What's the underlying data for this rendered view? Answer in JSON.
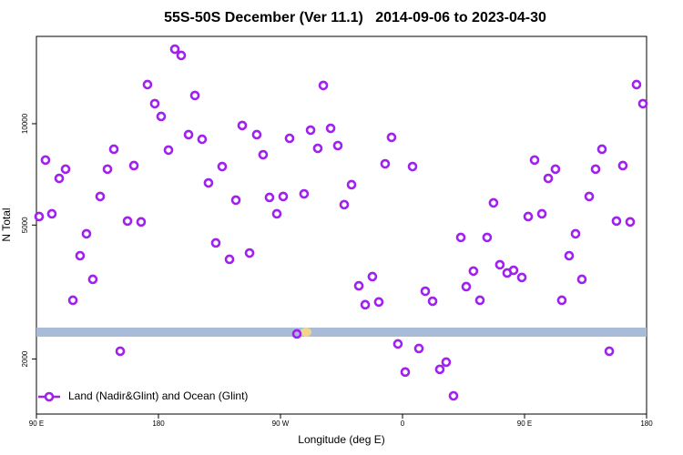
{
  "chart_data": {
    "type": "scatter",
    "title": "55S-50S December (Ver 11.1)   2014-09-06 to 2023-04-30",
    "x_label": "Longitude (deg E)",
    "y_label": "N Total",
    "x": [
      92,
      96.7,
      101.4,
      106.8,
      111.5,
      116.9,
      122.2,
      126.9,
      131.6,
      137,
      142.4,
      147.1,
      151.8,
      157.2,
      161.9,
      167.2,
      171.9,
      177.3,
      182,
      187.4,
      192.1,
      196.8,
      202.2,
      206.9,
      212.2,
      216.9,
      222.3,
      227,
      232.4,
      237.1,
      241.8,
      247.2,
      252.5,
      257.2,
      261.9,
      267.3,
      272,
      276.7,
      282.1,
      287.4,
      292.2,
      297.5,
      301.6,
      307,
      312.3,
      317,
      322.4,
      327.8,
      332.5,
      337.8,
      342.5,
      347.2,
      351.9,
      356.6,
      362,
      367.4,
      372.1,
      376.8,
      382.2,
      387.5,
      392.2,
      397.6,
      403,
      407,
      412.3,
      417.1,
      422.4,
      427.1,
      431.8,
      437.2,
      441.9,
      448,
      452.7,
      457.4,
      462.8,
      467.5,
      472.8,
      477.5,
      482.9,
      487.6,
      492.3,
      497.7,
      502.4,
      507.1,
      512.5,
      517.8,
      522.5,
      527.9,
      532.6,
      537.3
    ],
    "series": [
      {
        "name": "Land (Nadir&Glint) and Ocean (Glint)",
        "color": "#a020f0",
        "values": [
          5300,
          7800,
          5400,
          6880,
          7330,
          2990,
          4055,
          4710,
          3450,
          6080,
          7330,
          8400,
          2110,
          5140,
          7510,
          5110,
          13070,
          11470,
          10510,
          8350,
          16650,
          15950,
          9280,
          12130,
          8990,
          6670,
          4425,
          7460,
          3956,
          5930,
          9880,
          4130,
          9280,
          8090,
          6040,
          5400,
          6080,
          9050,
          2375,
          6190,
          9570,
          8450,
          12990,
          9690,
          8610,
          5750,
          6590,
          3300,
          2900,
          3515,
          2955,
          7600,
          9110,
          2218,
          1830,
          7460,
          2150,
          3180,
          2970,
          1864,
          1958,
          1555,
          4595,
          3282,
          3650,
          2990,
          4595,
          5820,
          3812,
          3603,
          3670,
          3494,
          5300,
          7800,
          5400,
          6880,
          7330,
          2990,
          4055,
          4710,
          3450,
          6080,
          7330,
          8400,
          2110,
          5140,
          7510,
          5110,
          13070,
          11470
        ]
      }
    ],
    "xlim": [
      90,
      540
    ],
    "xticks": [
      {
        "value": 90,
        "label": "90 E"
      },
      180,
      {
        "value": 270,
        "label": "90 W"
      },
      {
        "value": 360,
        "label": "0"
      },
      {
        "value": 450,
        "label": "90 E"
      },
      {
        "value": 540,
        "label": "180"
      }
    ],
    "ylim": [
      1373,
      18170
    ],
    "yticks": [
      2000,
      5000,
      10000
    ],
    "log_y": true,
    "legend": "lower left",
    "grid": false
  }
}
